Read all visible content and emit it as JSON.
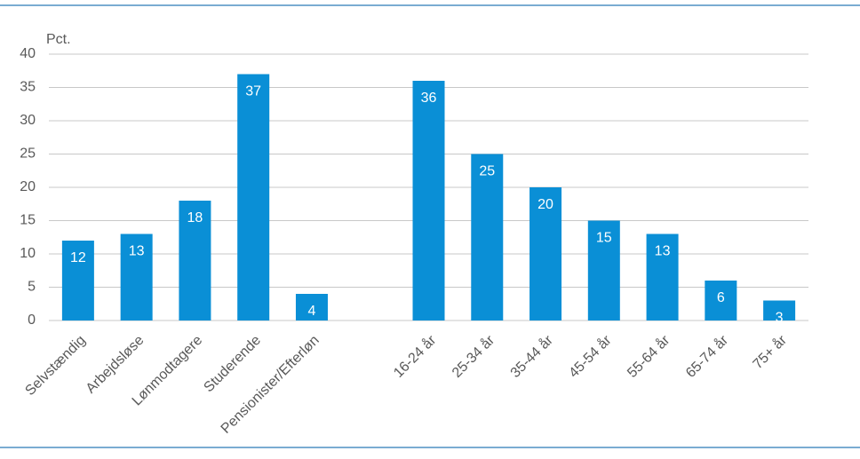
{
  "chart_data": {
    "type": "bar",
    "y_label": "Pct.",
    "categories": [
      "Selvstændig",
      "Arbejdsløse",
      "Lønmodtagere",
      "Studerende",
      "Pensionister/Efterløn",
      null,
      "16-24 år",
      "25-34 år",
      "35-44 år",
      "45-54 år",
      "55-64 år",
      "65-74 år",
      "75+ år"
    ],
    "values": [
      12,
      13,
      18,
      37,
      4,
      null,
      36,
      25,
      20,
      15,
      13,
      6,
      3
    ],
    "color": "#0a8fd6",
    "ylim": [
      0,
      40
    ],
    "yticks": [
      0,
      5,
      10,
      15,
      20,
      25,
      30,
      35,
      40
    ],
    "grid": true
  }
}
